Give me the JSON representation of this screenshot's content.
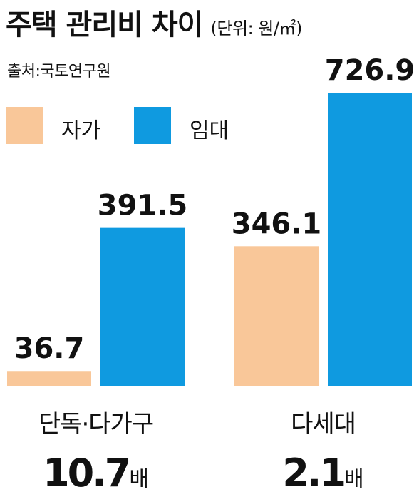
{
  "chart_data": {
    "type": "bar",
    "title": "주택 관리비 차이",
    "unit": "(단위: 원/㎡)",
    "source": "출처:국토연구원",
    "categories": [
      "단독·다가구",
      "다세대"
    ],
    "series": [
      {
        "name": "자가",
        "color": "#F9C799",
        "values": [
          36.7,
          346.1
        ]
      },
      {
        "name": "임대",
        "color": "#0F9AE0",
        "values": [
          391.5,
          726.9
        ]
      }
    ],
    "value_labels": [
      [
        "36.7",
        "346.1"
      ],
      [
        "391.5",
        "726.9"
      ]
    ],
    "ratios": [
      {
        "value": "10.7",
        "unit": "배"
      },
      {
        "value": "2.1",
        "unit": "배"
      }
    ],
    "ylim": [
      0,
      726.9
    ],
    "legend_position": "top-left"
  }
}
